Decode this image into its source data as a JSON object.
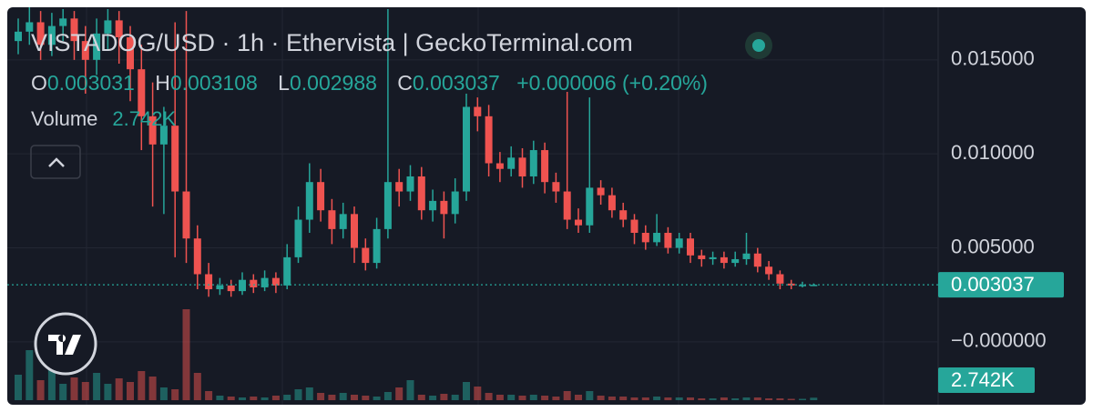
{
  "chart_data": {
    "type": "candlestick",
    "title": "VISTADOG/USD · 1h · Ethervista | GeckoTerminal.com",
    "legend": {
      "ohlc": [
        {
          "label": "O",
          "value": "0.003031"
        },
        {
          "label": "H",
          "value": "0.003108"
        },
        {
          "label": "L",
          "value": "0.002988"
        },
        {
          "label": "C",
          "value": "0.003037"
        }
      ],
      "change": "+0.000006 (+0.20%)",
      "volume_label": "Volume",
      "volume_value": "2.742K"
    },
    "color_up": "#26a69a",
    "color_down": "#ef5350",
    "open": [
      0.016,
      0.0165,
      0.017,
      0.0158,
      0.0168,
      0.0172,
      0.016,
      0.015,
      0.0164,
      0.0171,
      0.0162,
      0.0145,
      0.012,
      0.0105,
      0.0115,
      0.008,
      0.0055,
      0.0036,
      0.0028,
      0.003,
      0.0027,
      0.0033,
      0.0029,
      0.0034,
      0.003,
      0.0045,
      0.0065,
      0.0085,
      0.007,
      0.006,
      0.0068,
      0.005,
      0.0042,
      0.006,
      0.0085,
      0.008,
      0.0088,
      0.007,
      0.0075,
      0.0068,
      0.008,
      0.0125,
      0.012,
      0.0095,
      0.0092,
      0.0098,
      0.0088,
      0.0102,
      0.0085,
      0.008,
      0.0065,
      0.0062,
      0.0082,
      0.0078,
      0.007,
      0.0065,
      0.0058,
      0.0053,
      0.0058,
      0.005,
      0.0055,
      0.0046,
      0.0044,
      0.0045,
      0.0042,
      0.0044,
      0.0047,
      0.004,
      0.0036,
      0.0031,
      0.003,
      0.003031
    ],
    "high": [
      0.0172,
      0.0178,
      0.0176,
      0.0175,
      0.0177,
      0.0176,
      0.0168,
      0.0172,
      0.0177,
      0.0176,
      0.0168,
      0.0158,
      0.0138,
      0.0125,
      0.017,
      0.0176,
      0.0062,
      0.0042,
      0.0034,
      0.0033,
      0.0037,
      0.0036,
      0.0038,
      0.0037,
      0.0052,
      0.0072,
      0.0095,
      0.0092,
      0.0076,
      0.0074,
      0.0072,
      0.0055,
      0.0066,
      0.0177,
      0.0092,
      0.0094,
      0.0093,
      0.0081,
      0.008,
      0.0087,
      0.0132,
      0.013,
      0.0126,
      0.0101,
      0.0104,
      0.0103,
      0.0107,
      0.0106,
      0.009,
      0.0133,
      0.0071,
      0.013,
      0.0086,
      0.0082,
      0.0074,
      0.0068,
      0.0062,
      0.0068,
      0.0061,
      0.0058,
      0.0058,
      0.0049,
      0.0048,
      0.0048,
      0.0048,
      0.0058,
      0.005,
      0.0043,
      0.0038,
      0.0033,
      0.0032,
      0.003108
    ],
    "low": [
      0.0153,
      0.0158,
      0.015,
      0.0152,
      0.016,
      0.015,
      0.0132,
      0.0142,
      0.0155,
      0.0148,
      0.0128,
      0.0102,
      0.0072,
      0.0068,
      0.0045,
      0.0042,
      0.0028,
      0.0024,
      0.0025,
      0.0024,
      0.0025,
      0.0026,
      0.0027,
      0.0026,
      0.0028,
      0.0042,
      0.0058,
      0.0064,
      0.0052,
      0.0055,
      0.0042,
      0.0038,
      0.0039,
      0.0055,
      0.0072,
      0.0075,
      0.0065,
      0.0064,
      0.0055,
      0.0063,
      0.0075,
      0.0112,
      0.0088,
      0.0085,
      0.0088,
      0.0082,
      0.0084,
      0.0079,
      0.0074,
      0.006,
      0.0058,
      0.0058,
      0.0073,
      0.0066,
      0.0061,
      0.0052,
      0.0049,
      0.0051,
      0.0047,
      0.0047,
      0.0042,
      0.004,
      0.0041,
      0.0039,
      0.004,
      0.0041,
      0.0037,
      0.0033,
      0.0028,
      0.0028,
      0.0029,
      0.002988
    ],
    "close": [
      0.0165,
      0.017,
      0.0158,
      0.0168,
      0.0172,
      0.016,
      0.015,
      0.0164,
      0.0171,
      0.0162,
      0.0145,
      0.012,
      0.0105,
      0.0115,
      0.008,
      0.0055,
      0.0036,
      0.0028,
      0.003,
      0.0027,
      0.0033,
      0.0029,
      0.0034,
      0.003,
      0.0045,
      0.0065,
      0.0085,
      0.007,
      0.006,
      0.0068,
      0.005,
      0.0042,
      0.006,
      0.0085,
      0.008,
      0.0088,
      0.007,
      0.0075,
      0.0068,
      0.008,
      0.0125,
      0.012,
      0.0095,
      0.0092,
      0.0098,
      0.0088,
      0.0102,
      0.0085,
      0.008,
      0.0065,
      0.0062,
      0.0082,
      0.0078,
      0.007,
      0.0065,
      0.0058,
      0.0053,
      0.0058,
      0.005,
      0.0055,
      0.0046,
      0.0044,
      0.0045,
      0.0042,
      0.0044,
      0.0047,
      0.004,
      0.0036,
      0.0031,
      0.003,
      0.003031,
      0.003037
    ],
    "volume": [
      28,
      55,
      22,
      40,
      18,
      25,
      20,
      30,
      18,
      24,
      20,
      32,
      26,
      14,
      12,
      100,
      30,
      10,
      5,
      4,
      3,
      4,
      3,
      5,
      6,
      12,
      14,
      8,
      6,
      8,
      6,
      5,
      4,
      9,
      14,
      22,
      6,
      5,
      7,
      6,
      20,
      15,
      8,
      6,
      6,
      5,
      6,
      5,
      4,
      10,
      6,
      10,
      5,
      4,
      4,
      3,
      3,
      4,
      3,
      3,
      3,
      2,
      2,
      3,
      2,
      3,
      3,
      2,
      2,
      1.5,
      1.5,
      2.742
    ],
    "ylim": [
      -0.0031,
      0.0177
    ],
    "yticks": [
      {
        "value": 0.015,
        "label": "0.015000"
      },
      {
        "value": 0.01,
        "label": "0.010000"
      },
      {
        "value": 0.005,
        "label": "0.005000"
      },
      {
        "value": 0,
        "label": "−0.000000"
      }
    ],
    "last_price": {
      "value": 0.003037,
      "label": "0.003037"
    },
    "grid": true
  }
}
